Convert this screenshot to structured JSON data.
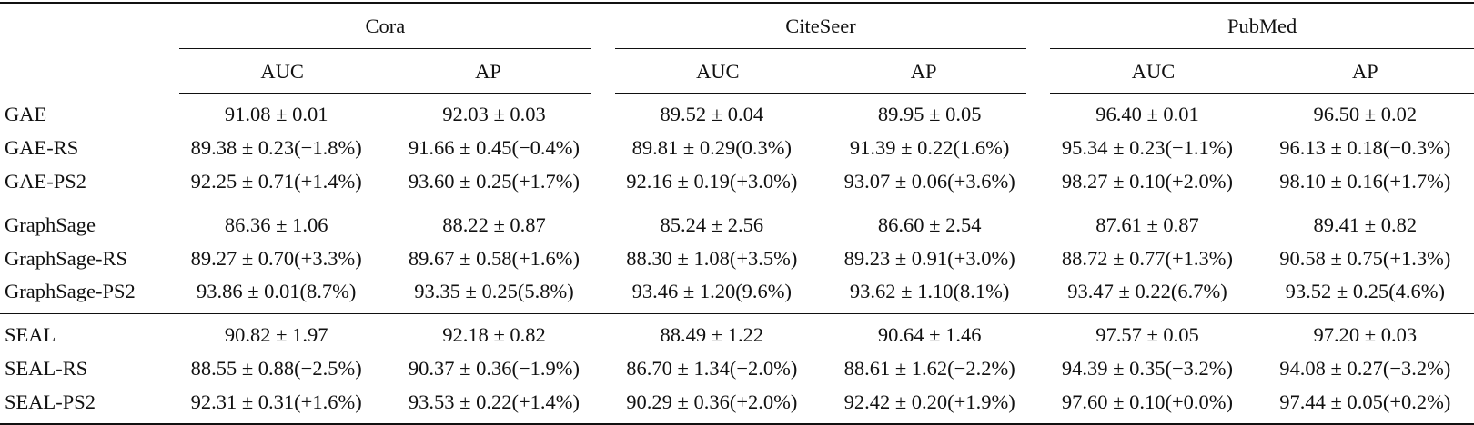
{
  "datasets": [
    "Cora",
    "CiteSeer",
    "PubMed"
  ],
  "metrics": [
    "AUC",
    "AP",
    "AUC",
    "AP",
    "AUC",
    "AP"
  ],
  "groups": [
    {
      "rows": [
        {
          "method": "GAE",
          "values": [
            "91.08 ± 0.01",
            "92.03 ± 0.03",
            "89.52 ± 0.04",
            "89.95 ± 0.05",
            "96.40 ± 0.01",
            "96.50 ± 0.02"
          ]
        },
        {
          "method": "GAE-RS",
          "values": [
            "89.38 ± 0.23(−1.8%)",
            "91.66 ± 0.45(−0.4%)",
            "89.81 ± 0.29(0.3%)",
            "91.39 ± 0.22(1.6%)",
            "95.34 ± 0.23(−1.1%)",
            "96.13 ± 0.18(−0.3%)"
          ]
        },
        {
          "method": "GAE-PS2",
          "values": [
            "92.25 ± 0.71(+1.4%)",
            "93.60 ± 0.25(+1.7%)",
            "92.16 ± 0.19(+3.0%)",
            "93.07 ± 0.06(+3.6%)",
            "98.27 ± 0.10(+2.0%)",
            "98.10 ± 0.16(+1.7%)"
          ]
        }
      ]
    },
    {
      "rows": [
        {
          "method": "GraphSage",
          "values": [
            "86.36 ± 1.06",
            "88.22 ± 0.87",
            "85.24 ± 2.56",
            "86.60 ± 2.54",
            "87.61 ± 0.87",
            "89.41 ± 0.82"
          ]
        },
        {
          "method": "GraphSage-RS",
          "values": [
            "89.27 ± 0.70(+3.3%)",
            "89.67 ± 0.58(+1.6%)",
            "88.30 ± 1.08(+3.5%)",
            "89.23 ± 0.91(+3.0%)",
            "88.72 ± 0.77(+1.3%)",
            "90.58 ± 0.75(+1.3%)"
          ]
        },
        {
          "method": "GraphSage-PS2",
          "values": [
            "93.86 ± 0.01(8.7%)",
            "93.35 ± 0.25(5.8%)",
            "93.46 ± 1.20(9.6%)",
            "93.62 ± 1.10(8.1%)",
            "93.47 ± 0.22(6.7%)",
            "93.52 ± 0.25(4.6%)"
          ]
        }
      ]
    },
    {
      "rows": [
        {
          "method": "SEAL",
          "values": [
            "90.82 ± 1.97",
            "92.18 ± 0.82",
            "88.49 ± 1.22",
            "90.64 ± 1.46",
            "97.57 ± 0.05",
            "97.20 ± 0.03"
          ]
        },
        {
          "method": "SEAL-RS",
          "values": [
            "88.55 ± 0.88(−2.5%)",
            "90.37 ± 0.36(−1.9%)",
            "86.70 ± 1.34(−2.0%)",
            "88.61 ± 1.62(−2.2%)",
            "94.39 ± 0.35(−3.2%)",
            "94.08 ± 0.27(−3.2%)"
          ]
        },
        {
          "method": "SEAL-PS2",
          "values": [
            "92.31 ± 0.31(+1.6%)",
            "93.53 ± 0.22(+1.4%)",
            "90.29 ± 0.36(+2.0%)",
            "92.42 ± 0.20(+1.9%)",
            "97.60 ± 0.10(+0.0%)",
            "97.44 ± 0.05(+0.2%)"
          ]
        }
      ]
    }
  ]
}
